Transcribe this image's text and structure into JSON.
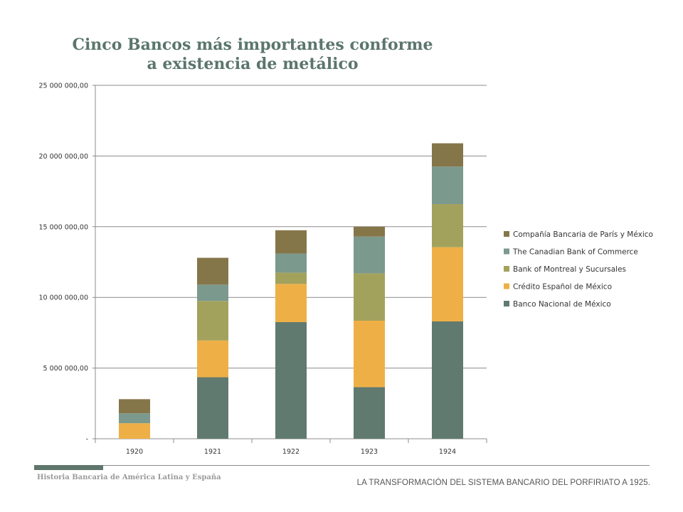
{
  "chart_data": {
    "type": "bar",
    "stacked": true,
    "title_lines": [
      "Cinco Bancos más importantes conforme",
      "a existencia de metálico"
    ],
    "categories": [
      "1920",
      "1921",
      "1922",
      "1923",
      "1924"
    ],
    "ylim": [
      0,
      25000000
    ],
    "y_ticks": [
      {
        "value": 0,
        "label": "-"
      },
      {
        "value": 5000000,
        "label": "5 000 000,00"
      },
      {
        "value": 10000000,
        "label": "10 000 000,00"
      },
      {
        "value": 15000000,
        "label": "15 000 000,00"
      },
      {
        "value": 20000000,
        "label": "20 000 000,00"
      },
      {
        "value": 25000000,
        "label": "25 000 000,00"
      }
    ],
    "grid": true,
    "legend_position": "right",
    "series": [
      {
        "name": "Banco Nacional de México",
        "color": "#617a6f",
        "values": [
          0,
          4350000,
          8250000,
          3650000,
          8300000
        ]
      },
      {
        "name": "Crédito Español de México",
        "color": "#eeb046",
        "values": [
          1100000,
          2600000,
          2700000,
          4700000,
          5250000
        ]
      },
      {
        "name": "Bank of Montreal y Sucursales",
        "color": "#a3a25d",
        "values": [
          0,
          2800000,
          800000,
          3350000,
          3050000
        ]
      },
      {
        "name": "The Canadian Bank of Commerce",
        "color": "#7b998d",
        "values": [
          700000,
          1150000,
          1350000,
          2600000,
          2650000
        ]
      },
      {
        "name": "Compañía Bancaria de París y México",
        "color": "#85764a",
        "values": [
          1000000,
          1900000,
          1650000,
          700000,
          1650000
        ]
      }
    ]
  },
  "footer": {
    "left_text": "Historia Bancaria de América Latina y España",
    "right_text": "LA TRANSFORMACIÓN DEL SISTEMA BANCARIO DEL PORFIRIATO A 1925."
  }
}
